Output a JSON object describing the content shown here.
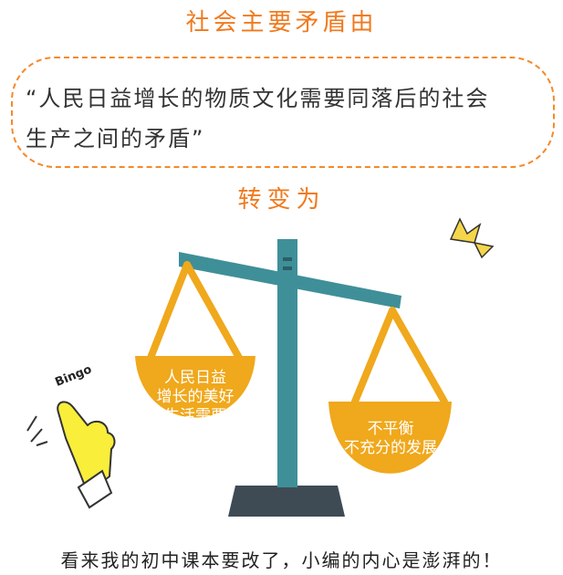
{
  "header": {
    "title": "社会主要矛盾由"
  },
  "quote": {
    "line1": "“人民日益增长的物质文化需要同落后的社会",
    "line2": "生产之间的矛盾”"
  },
  "transition": {
    "label": "转变为"
  },
  "scale": {
    "left_pan": {
      "line1": "人民日益",
      "line2": "增长的美好",
      "line3": "生活需要"
    },
    "right_pan": {
      "line1": "不平衡",
      "line2": "不充分的发展"
    }
  },
  "sticker": {
    "text": "Bingo"
  },
  "footer": {
    "caption": "看来我的初中课本要改了，小编的内心是澎湃的！"
  },
  "colors": {
    "accent": "#f07a1e",
    "pan": "#f0a81c",
    "pole": "#3f8f99",
    "base": "#3e4b55",
    "hand": "#f9ee3a"
  }
}
